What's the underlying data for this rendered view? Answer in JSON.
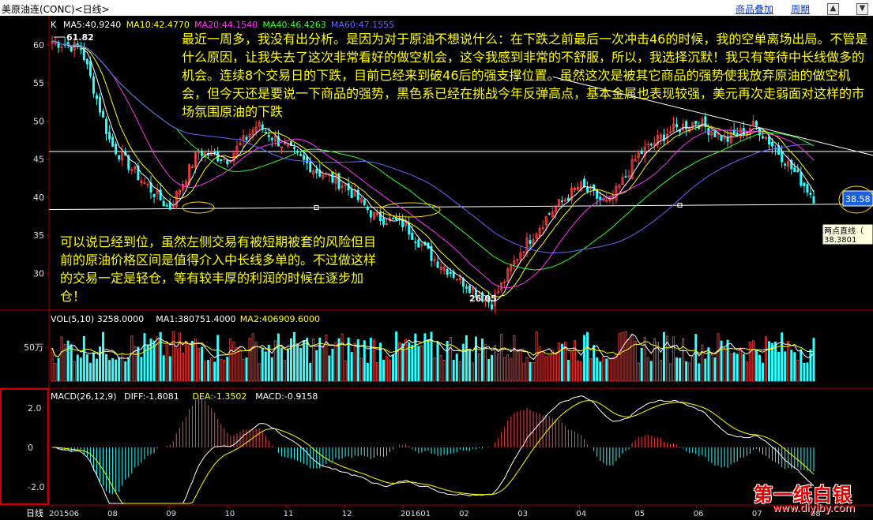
{
  "header": {
    "title": "美原油连(CONC)<日线>",
    "overlay_link": "商品叠加",
    "period_link": "周期"
  },
  "main_panel": {
    "code": "K",
    "ma_labels": [
      {
        "text": "MA5:40.9240",
        "color": "#ffffff"
      },
      {
        "text": "MA10:42.4770",
        "color": "#ffff00"
      },
      {
        "text": "MA20:44.1540",
        "color": "#ff33ff"
      },
      {
        "text": "MA40:46.4263",
        "color": "#33ff33"
      },
      {
        "text": "MA60:47.1555",
        "color": "#6666ff"
      }
    ],
    "y_ticks": [
      "60",
      "55",
      "50",
      "45",
      "40",
      "35",
      "30"
    ],
    "high_label": "61.82",
    "low_label": "26.05",
    "price_tag": "38.58",
    "line_tool": {
      "name": "两点直线（",
      "value": "38.3801"
    }
  },
  "notes": {
    "top": "最近一周多，我没有出分析。是因为对于原油不想说什么：在下跌之前最后一次冲击46的时候，我的空单离场出局。不管是什么原因，让我失去了这次非常看好的做空机会，这令我感到非常的不舒服，所以，我选择沉默！我只有等待中长线做多的机会。连续8个交易日的下跌，目前已经来到破46后的强支撑位置。虽然这次是被其它商品的强势使我放弃原油的做空机会，但今天还是要说一下商品的强势，黑色系已经在挑战今年反弹高点，基本金属也表现较强，美元再次走弱面对这样的市场氛围原油的下跌",
    "left": "可以说已经到位，虽然左侧交易有被短期被套的风险但目前的原油价格区间是值得介入中长线多单的。不过做这样的交易一定是轻仓，等有较丰厚的利润的时候在逐步加仓！"
  },
  "volume_panel": {
    "labels": [
      {
        "text": "VOL(5,10) 3258.0000",
        "color": "#ffffff"
      },
      {
        "text": "MA1:380751.4000",
        "color": "#ffffff"
      },
      {
        "text": "MA2:406909.6000",
        "color": "#ffff00"
      }
    ],
    "y_label": "50万"
  },
  "macd_panel": {
    "labels": [
      {
        "text": "MACD(26,12,9)",
        "color": "#ffffff"
      },
      {
        "text": "DIFF:-1.8081",
        "color": "#ffffff"
      },
      {
        "text": "DEA:-1.3502",
        "color": "#ffff00"
      },
      {
        "text": "MACD:-0.9158",
        "color": "#ffffff"
      }
    ],
    "y_ticks": [
      "2.0",
      "0",
      "-2.0"
    ]
  },
  "x_axis": {
    "period": "日线",
    "ticks": [
      "201506",
      "08",
      "09",
      "10",
      "11",
      "12",
      "201601",
      "02",
      "03",
      "04",
      "05",
      "06",
      "07",
      "08"
    ]
  },
  "watermark": {
    "big": "第一纸白银",
    "small": "www.diyiby.com"
  },
  "chart_data": {
    "type": "candlestick",
    "title": "美原油连(CONC)<日线>",
    "ylim": [
      26,
      63
    ],
    "x_ticks": [
      "201506",
      "08",
      "09",
      "10",
      "11",
      "12",
      "201601",
      "02",
      "03",
      "04",
      "05",
      "06",
      "07",
      "08"
    ],
    "close_anchors": [
      {
        "x": "201506",
        "close": 60.5
      },
      {
        "x": "07",
        "close": 59.5
      },
      {
        "x": "08",
        "close": 47.0
      },
      {
        "x": "08",
        "close": 42.5
      },
      {
        "x": "09",
        "close": 38.5
      },
      {
        "x": "09",
        "close": 46.0
      },
      {
        "x": "10",
        "close": 45.0
      },
      {
        "x": "10",
        "close": 49.5
      },
      {
        "x": "11",
        "close": 46.5
      },
      {
        "x": "11",
        "close": 43.5
      },
      {
        "x": "12",
        "close": 41.5
      },
      {
        "x": "12",
        "close": 37.5
      },
      {
        "x": "201601",
        "close": 36.5
      },
      {
        "x": "201601",
        "close": 32.0
      },
      {
        "x": "02",
        "close": 29.0
      },
      {
        "x": "02",
        "close": 26.05
      },
      {
        "x": "03",
        "close": 33.0
      },
      {
        "x": "03",
        "close": 38.0
      },
      {
        "x": "04",
        "close": 41.5
      },
      {
        "x": "04",
        "close": 39.0
      },
      {
        "x": "05",
        "close": 45.5
      },
      {
        "x": "05",
        "close": 48.5
      },
      {
        "x": "06",
        "close": 50.0
      },
      {
        "x": "06",
        "close": 47.5
      },
      {
        "x": "07",
        "close": 49.5
      },
      {
        "x": "07",
        "close": 45.0
      },
      {
        "x": "08",
        "close": 40.0
      }
    ],
    "high": 61.82,
    "low": 26.05,
    "last": 38.58,
    "support_line": 38.3801,
    "resistance_line": 46,
    "moving_averages": {
      "MA5": 40.924,
      "MA10": 42.477,
      "MA20": 44.154,
      "MA40": 46.4263,
      "MA60": 47.1555
    },
    "volume": {
      "MA1": 380751.4,
      "MA2": 406909.6,
      "y_tick": "50万"
    },
    "macd": {
      "DIFF": -1.8081,
      "DEA": -1.3502,
      "MACD": -0.9158,
      "y_ticks": [
        2.0,
        0,
        -2.0
      ]
    }
  }
}
